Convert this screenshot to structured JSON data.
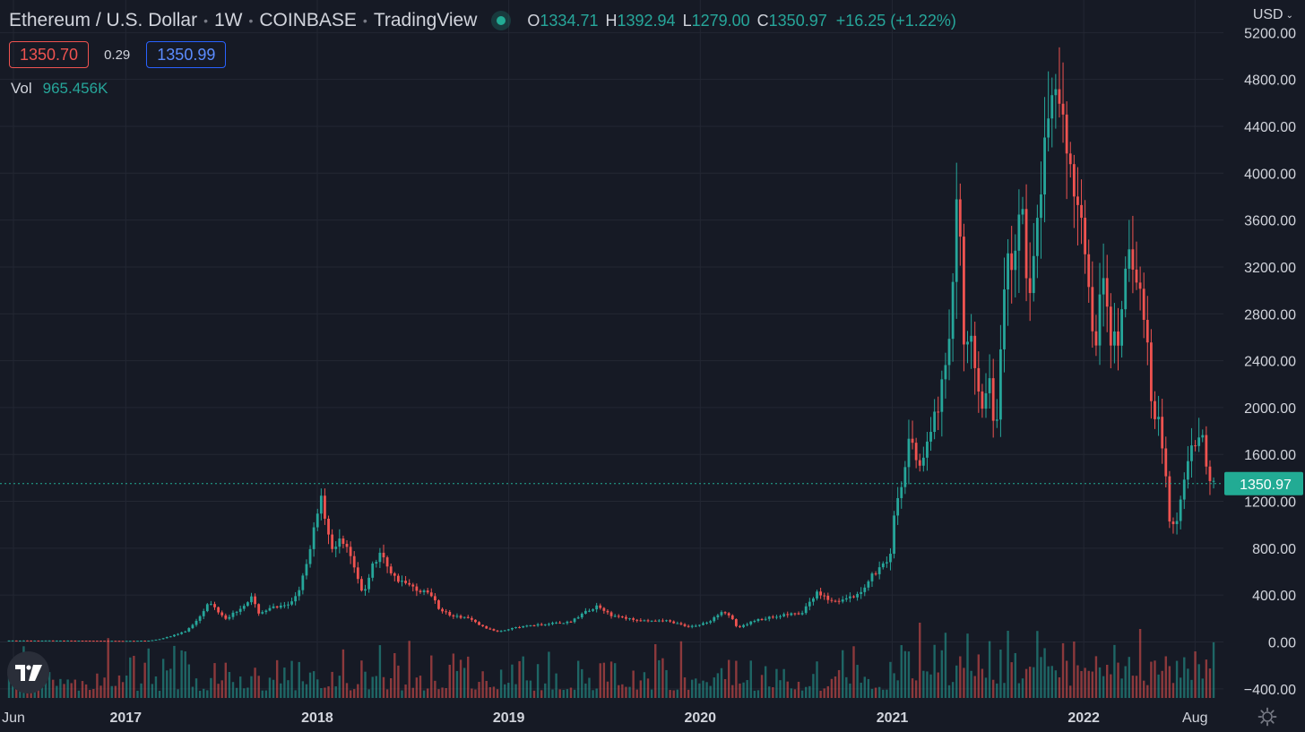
{
  "header": {
    "symbol_name": "Ethereum / U.S. Dollar",
    "interval": "1W",
    "exchange": "COINBASE",
    "source": "TradingView",
    "open_label": "O",
    "open": "1334.71",
    "high_label": "H",
    "high": "1392.94",
    "low_label": "L",
    "low": "1279.00",
    "close_label": "C",
    "close": "1350.97",
    "change": "+16.25 (+1.22%)"
  },
  "quote": {
    "bid": "1350.70",
    "spread": "0.29",
    "ask": "1350.99"
  },
  "volume": {
    "label": "Vol",
    "value": "965.456K"
  },
  "currency": "USD",
  "last_price_label": "1350.97",
  "colors": {
    "up": "#26a69a",
    "down": "#ef5350",
    "background": "#161a25",
    "grid": "#232733",
    "price_tag": "#22ab94"
  },
  "icons": {
    "logo": "tradingview-logo-icon",
    "settings": "gear-icon",
    "currency_menu": "chevron-down-icon"
  },
  "chart_data": {
    "type": "candlestick",
    "interval": "1W",
    "price_axis": {
      "ticks": [
        5200,
        4800,
        4400,
        4000,
        3600,
        3200,
        2800,
        2400,
        2000,
        1600,
        1200,
        800,
        400,
        0,
        -400
      ],
      "ylim": [
        -400,
        5200
      ]
    },
    "time_axis": {
      "ticks": [
        {
          "label": "Jun",
          "date": "2016-06-01"
        },
        {
          "label": "2017",
          "date": "2017-01-01"
        },
        {
          "label": "2018",
          "date": "2018-01-01"
        },
        {
          "label": "2019",
          "date": "2019-01-01"
        },
        {
          "label": "2020",
          "date": "2020-01-01"
        },
        {
          "label": "2021",
          "date": "2021-01-01"
        },
        {
          "label": "2022",
          "date": "2022-01-01"
        },
        {
          "label": "Aug",
          "date": "2022-08-01"
        }
      ],
      "xlim": [
        "2016-05-20",
        "2022-09-02"
      ]
    },
    "last_price": 1350.97,
    "price_path": [
      [
        "2016-05-20",
        12
      ],
      [
        "2016-09-01",
        12
      ],
      [
        "2017-01-01",
        9
      ],
      [
        "2017-02-20",
        12
      ],
      [
        "2017-03-10",
        25
      ],
      [
        "2017-04-01",
        50
      ],
      [
        "2017-05-01",
        95
      ],
      [
        "2017-05-20",
        190
      ],
      [
        "2017-06-12",
        330
      ],
      [
        "2017-07-15",
        200
      ],
      [
        "2017-08-15",
        300
      ],
      [
        "2017-09-01",
        380
      ],
      [
        "2017-09-15",
        250
      ],
      [
        "2017-10-15",
        300
      ],
      [
        "2017-11-10",
        310
      ],
      [
        "2017-12-01",
        450
      ],
      [
        "2017-12-20",
        720
      ],
      [
        "2018-01-10",
        1250
      ],
      [
        "2018-01-20",
        1050
      ],
      [
        "2018-02-05",
        750
      ],
      [
        "2018-02-20",
        900
      ],
      [
        "2018-03-10",
        700
      ],
      [
        "2018-04-01",
        400
      ],
      [
        "2018-04-20",
        650
      ],
      [
        "2018-05-05",
        750
      ],
      [
        "2018-06-01",
        550
      ],
      [
        "2018-07-01",
        470
      ],
      [
        "2018-08-10",
        400
      ],
      [
        "2018-08-25",
        280
      ],
      [
        "2018-09-15",
        230
      ],
      [
        "2018-10-20",
        200
      ],
      [
        "2018-11-20",
        120
      ],
      [
        "2018-12-15",
        90
      ],
      [
        "2019-01-15",
        120
      ],
      [
        "2019-02-15",
        140
      ],
      [
        "2019-04-01",
        160
      ],
      [
        "2019-05-01",
        170
      ],
      [
        "2019-06-01",
        260
      ],
      [
        "2019-06-25",
        310
      ],
      [
        "2019-07-20",
        220
      ],
      [
        "2019-09-01",
        190
      ],
      [
        "2019-10-01",
        175
      ],
      [
        "2019-11-01",
        180
      ],
      [
        "2019-12-15",
        130
      ],
      [
        "2020-01-20",
        165
      ],
      [
        "2020-02-15",
        265
      ],
      [
        "2020-03-01",
        230
      ],
      [
        "2020-03-15",
        115
      ],
      [
        "2020-04-15",
        180
      ],
      [
        "2020-05-15",
        210
      ],
      [
        "2020-06-15",
        235
      ],
      [
        "2020-07-15",
        240
      ],
      [
        "2020-08-15",
        430
      ],
      [
        "2020-09-05",
        360
      ],
      [
        "2020-10-01",
        355
      ],
      [
        "2020-11-01",
        400
      ],
      [
        "2020-11-25",
        560
      ],
      [
        "2020-12-15",
        640
      ],
      [
        "2021-01-01",
        740
      ],
      [
        "2021-01-10",
        1200
      ],
      [
        "2021-01-20",
        1300
      ],
      [
        "2021-02-10",
        1800
      ],
      [
        "2021-02-25",
        1450
      ],
      [
        "2021-03-15",
        1800
      ],
      [
        "2021-04-01",
        2000
      ],
      [
        "2021-04-20",
        2400
      ],
      [
        "2021-05-11",
        4000
      ],
      [
        "2021-05-20",
        2600
      ],
      [
        "2021-06-05",
        2700
      ],
      [
        "2021-06-22",
        1900
      ],
      [
        "2021-07-10",
        2200
      ],
      [
        "2021-07-20",
        1750
      ],
      [
        "2021-08-10",
        3200
      ],
      [
        "2021-08-28",
        3250
      ],
      [
        "2021-09-05",
        3900
      ],
      [
        "2021-09-20",
        3000
      ],
      [
        "2021-10-01",
        3200
      ],
      [
        "2021-10-20",
        4200
      ],
      [
        "2021-11-10",
        4650
      ],
      [
        "2021-11-25",
        4400
      ],
      [
        "2021-12-05",
        4000
      ],
      [
        "2021-12-20",
        3900
      ],
      [
        "2022-01-01",
        3700
      ],
      [
        "2022-01-10",
        3200
      ],
      [
        "2022-01-24",
        2400
      ],
      [
        "2022-02-08",
        3100
      ],
      [
        "2022-02-24",
        2600
      ],
      [
        "2022-03-15",
        2600
      ],
      [
        "2022-04-01",
        3450
      ],
      [
        "2022-04-20",
        3000
      ],
      [
        "2022-05-01",
        2800
      ],
      [
        "2022-05-15",
        2000
      ],
      [
        "2022-06-01",
        1800
      ],
      [
        "2022-06-18",
        1000
      ],
      [
        "2022-07-01",
        1050
      ],
      [
        "2022-07-20",
        1550
      ],
      [
        "2022-08-05",
        1700
      ],
      [
        "2022-08-15",
        1850
      ],
      [
        "2022-08-25",
        1550
      ],
      [
        "2022-09-01",
        1350
      ]
    ]
  }
}
